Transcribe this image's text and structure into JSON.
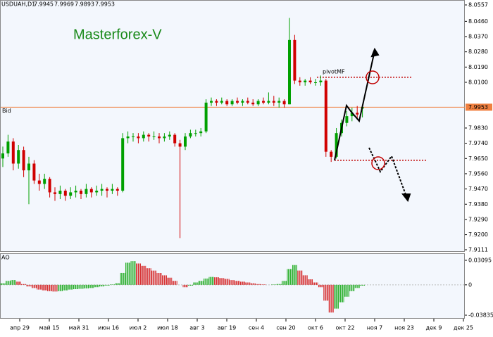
{
  "chart_data": {
    "type": "candlestick",
    "symbol": "USDUAH,D1",
    "title": "Masterforex-V",
    "bid_label": "Bid",
    "bid": 7.9953,
    "pivot_label": "pivotMF",
    "pivot_levels": [
      8.013,
      7.964
    ],
    "up_color": "#00a000",
    "down_color": "#d00000",
    "ylim": [
      7.9111,
      8.0557
    ],
    "yticks": [
      8.0557,
      {
        "value": 8.046,
        "label": "8.0460"
      },
      {
        "value": 8.037,
        "label": "8.0370"
      },
      {
        "value": 8.028,
        "label": "8.0280"
      },
      {
        "value": 8.019,
        "label": "8.0190"
      },
      {
        "value": 8.01,
        "label": "8.0100"
      },
      {
        "value": 7.983,
        "label": "7.9830"
      },
      {
        "value": 7.974,
        "label": "7.9740"
      },
      {
        "value": 7.965,
        "label": "7.9650"
      },
      {
        "value": 7.956,
        "label": "7.9560"
      },
      {
        "value": 7.947,
        "label": "7.9470"
      },
      {
        "value": 7.938,
        "label": "7.9380"
      },
      {
        "value": 7.929,
        "label": "7.9290"
      },
      {
        "value": 7.92,
        "label": "7.9200"
      },
      7.9111
    ],
    "x_labels": [
      "апр 29",
      "май 15",
      "май 31",
      "июн 16",
      "июл 2",
      "июл 18",
      "авг 3",
      "авг 19",
      "сен 4",
      "сен 20",
      "окт 6",
      "окт 22",
      "ноя 7",
      "ноя 23",
      "дек 9",
      "дек 25"
    ],
    "candles": {
      "open": [
        7.965,
        7.968,
        7.975,
        7.962,
        7.97,
        7.958,
        7.962,
        7.952,
        7.95,
        7.953,
        7.945,
        7.944,
        7.946,
        7.943,
        7.945,
        7.946,
        7.944,
        7.947,
        7.945,
        7.946,
        7.947,
        7.946,
        7.947,
        7.946,
        7.977,
        7.978,
        7.978,
        7.977,
        7.979,
        7.978,
        7.978,
        7.977,
        7.978,
        7.979,
        7.974,
        7.972,
        7.978,
        7.98,
        7.98,
        7.981,
        7.998,
        7.999,
        7.998,
        7.999,
        7.997,
        7.999,
        7.998,
        7.999,
        7.998,
        7.997,
        7.999,
        7.998,
        7.999,
        7.998,
        7.999,
        7.997,
        8.035,
        8.011,
        8.01,
        8.011,
        8.01,
        8.01,
        8.011,
        7.969,
        7.966,
        7.98,
        7.986,
        7.99,
        7.992,
        7.9945
      ],
      "high": [
        7.972,
        7.979,
        7.977,
        7.973,
        7.972,
        7.966,
        7.964,
        7.956,
        7.956,
        7.954,
        7.948,
        7.949,
        7.947,
        7.948,
        7.949,
        7.947,
        7.95,
        7.948,
        7.949,
        7.95,
        7.948,
        7.95,
        7.948,
        7.98,
        7.981,
        7.98,
        7.98,
        7.981,
        7.98,
        7.981,
        7.98,
        7.98,
        7.981,
        7.98,
        7.976,
        7.98,
        7.982,
        7.982,
        7.983,
        8.0,
        8.001,
        8.0,
        8.001,
        8.0,
        8.0,
        8.001,
        8.0,
        8.001,
        8.0,
        8.0,
        8.001,
        8.004,
        8.002,
        8.001,
        8.0,
        8.048,
        8.038,
        8.013,
        8.012,
        8.013,
        8.012,
        8.014,
        8.012,
        7.97,
        7.983,
        7.988,
        7.993,
        7.995,
        7.996,
        7.9969
      ],
      "low": [
        7.96,
        7.966,
        7.958,
        7.959,
        7.954,
        7.938,
        7.95,
        7.946,
        7.947,
        7.942,
        7.94,
        7.941,
        7.94,
        7.941,
        7.942,
        7.941,
        7.942,
        7.942,
        7.943,
        7.943,
        7.942,
        7.944,
        7.943,
        7.945,
        7.974,
        7.975,
        7.974,
        7.975,
        7.975,
        7.976,
        7.974,
        7.975,
        7.976,
        7.972,
        7.918,
        7.97,
        7.977,
        7.978,
        7.978,
        7.98,
        7.996,
        7.996,
        7.997,
        7.996,
        7.996,
        7.997,
        7.996,
        7.997,
        7.996,
        7.996,
        7.997,
        7.997,
        7.996,
        7.995,
        7.995,
        7.997,
        8.009,
        8.008,
        8.008,
        8.009,
        8.008,
        8.008,
        7.966,
        7.963,
        7.965,
        7.978,
        7.984,
        7.987,
        7.988,
        7.9893
      ],
      "close": [
        7.968,
        7.975,
        7.962,
        7.97,
        7.958,
        7.962,
        7.952,
        7.95,
        7.953,
        7.945,
        7.944,
        7.946,
        7.943,
        7.945,
        7.946,
        7.944,
        7.947,
        7.945,
        7.946,
        7.947,
        7.946,
        7.947,
        7.946,
        7.977,
        7.978,
        7.978,
        7.977,
        7.979,
        7.978,
        7.978,
        7.977,
        7.978,
        7.979,
        7.974,
        7.972,
        7.978,
        7.98,
        7.98,
        7.981,
        7.998,
        7.999,
        7.998,
        7.999,
        7.997,
        7.999,
        7.998,
        7.999,
        7.998,
        7.997,
        7.999,
        7.998,
        7.999,
        7.998,
        7.999,
        7.997,
        8.035,
        8.011,
        8.01,
        8.011,
        8.01,
        8.01,
        8.011,
        7.969,
        7.966,
        7.98,
        7.986,
        7.99,
        7.992,
        7.991,
        7.9953
      ]
    },
    "ao_label": "AO",
    "ao_ylim": [
      -0.03835,
      0.03095
    ],
    "ao_yticks": [
      0.03095,
      0,
      -0.03835
    ],
    "ao_values": [
      0.002,
      0.005,
      0.006,
      0.004,
      0.001,
      -0.002,
      -0.004,
      -0.006,
      -0.007,
      -0.008,
      -0.0085,
      -0.008,
      -0.007,
      -0.006,
      -0.0055,
      -0.005,
      -0.0045,
      -0.004,
      -0.003,
      -0.002,
      -0.001,
      0.0005,
      0.002,
      0.015,
      0.028,
      0.03,
      0.027,
      0.024,
      0.021,
      0.018,
      0.015,
      0.012,
      0.009,
      0.005,
      0,
      -0.003,
      -0.001,
      0.003,
      0.005,
      0.008,
      0.01,
      0.0095,
      0.0085,
      0.0075,
      0.006,
      0.005,
      0.004,
      0.003,
      0.002,
      0.001,
      0.0005,
      0,
      0.0005,
      0.001,
      0.005,
      0.02,
      0.025,
      0.018,
      0.012,
      0.007,
      0.003,
      -0.003,
      -0.02,
      -0.035,
      -0.03,
      -0.022,
      -0.015,
      -0.008,
      -0.004,
      -0.001
    ]
  }
}
